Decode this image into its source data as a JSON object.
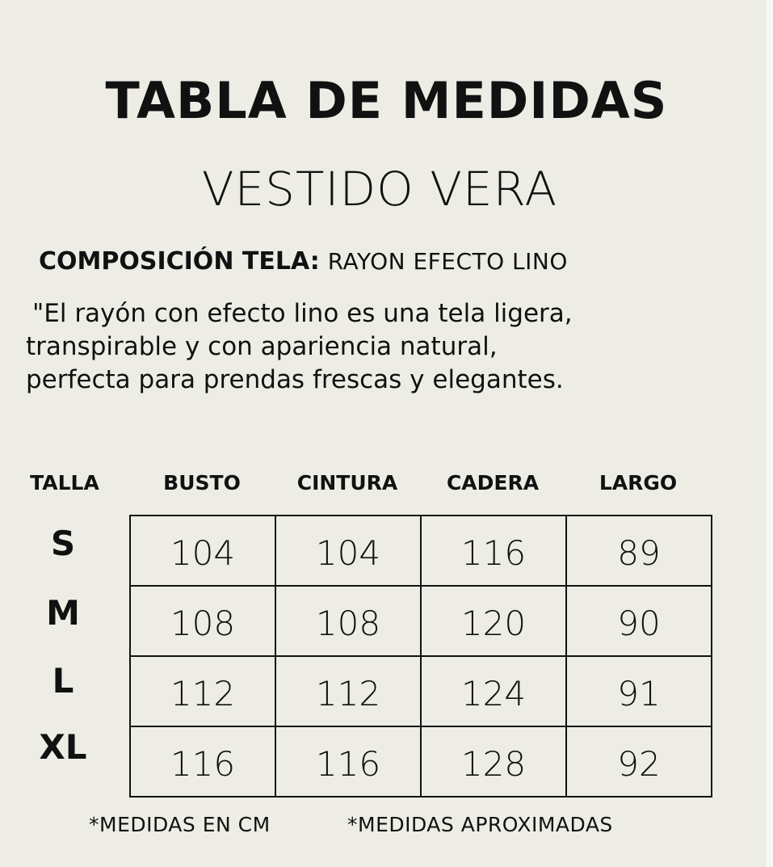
{
  "title": "TABLA DE MEDIDAS",
  "subtitle": "VESTIDO VERA",
  "composition": {
    "label": "COMPOSICIÓN TELA:",
    "value": "RAYON EFECTO LINO"
  },
  "description": [
    "\"El rayón con efecto lino es una tela ligera,",
    "transpirable y con apariencia natural,",
    "perfecta para prendas frescas y elegantes."
  ],
  "table": {
    "headers": [
      "TALLA",
      "BUSTO",
      "CINTURA",
      "CADERA",
      "LARGO"
    ],
    "rows": [
      {
        "size": "S",
        "values": [
          "104",
          "104",
          "116",
          "89"
        ]
      },
      {
        "size": "M",
        "values": [
          "108",
          "108",
          "120",
          "90"
        ]
      },
      {
        "size": "L",
        "values": [
          "112",
          "112",
          "124",
          "91"
        ]
      },
      {
        "size": "XL",
        "values": [
          "116",
          "116",
          "128",
          "92"
        ]
      }
    ]
  },
  "footnotes": [
    "*MEDIDAS EN CM",
    "*MEDIDAS APROXIMADAS"
  ]
}
